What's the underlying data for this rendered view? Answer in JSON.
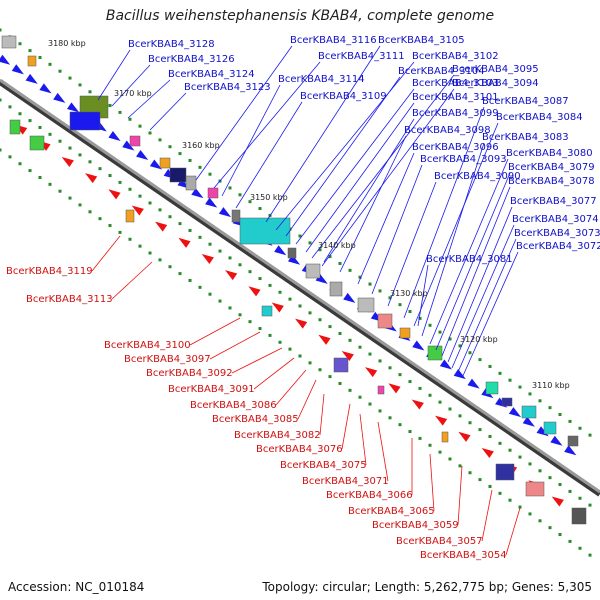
{
  "title": "Bacillus weihenstephanensis KBAB4, complete genome",
  "footer": {
    "accession_label": "Accession: NC_010184",
    "topology_label": "Topology: circular; Length: 5,262,775 bp; Genes: 5,305"
  },
  "colors": {
    "backbone": "#777777",
    "forward_label": "#1010c8",
    "reverse_label": "#d01010",
    "forward_arrow": "#1a1aee",
    "reverse_arrow": "#ee1111",
    "tick": "#2a8a2a"
  },
  "scale_marks": [
    "3180 kbp",
    "3170 kbp",
    "3160 kbp",
    "3150 kbp",
    "3140 kbp",
    "3130 kbp",
    "3120 kbp",
    "3110 kbp"
  ],
  "forward_genes": [
    "BcerKBAB4_3128",
    "BcerKBAB4_3126",
    "BcerKBAB4_3124",
    "BcerKBAB4_3123",
    "BcerKBAB4_3116",
    "BcerKBAB4_3111",
    "BcerKBAB4_3114",
    "BcerKBAB4_3109",
    "BcerKBAB4_3105",
    "BcerKBAB4_3102",
    "BcerKBAB4_3104",
    "BcerKBAB4_3103",
    "BcerKBAB4_3101",
    "BcerKBAB4_3099",
    "BcerKBAB4_3098",
    "BcerKBAB4_3096",
    "BcerKBAB4_3093",
    "BcerKBAB4_3090",
    "BcerKBAB4_3095",
    "BcerKBAB4_3094",
    "BcerKBAB4_3087",
    "BcerKBAB4_3084",
    "BcerKBAB4_3083",
    "BcerKBAB4_3080",
    "BcerKBAB4_3079",
    "BcerKBAB4_3078",
    "BcerKBAB4_3077",
    "BcerKBAB4_3074",
    "BcerKBAB4_3073",
    "BcerKBAB4_3072",
    "BcerKBAB4_3081"
  ],
  "reverse_genes": [
    "BcerKBAB4_3119",
    "BcerKBAB4_3113",
    "BcerKBAB4_3100",
    "BcerKBAB4_3097",
    "BcerKBAB4_3092",
    "BcerKBAB4_3091",
    "BcerKBAB4_3086",
    "BcerKBAB4_3085",
    "BcerKBAB4_3082",
    "BcerKBAB4_3076",
    "BcerKBAB4_3075",
    "BcerKBAB4_3071",
    "BcerKBAB4_3066",
    "BcerKBAB4_3065",
    "BcerKBAB4_3059",
    "BcerKBAB4_3057",
    "BcerKBAB4_3054"
  ]
}
